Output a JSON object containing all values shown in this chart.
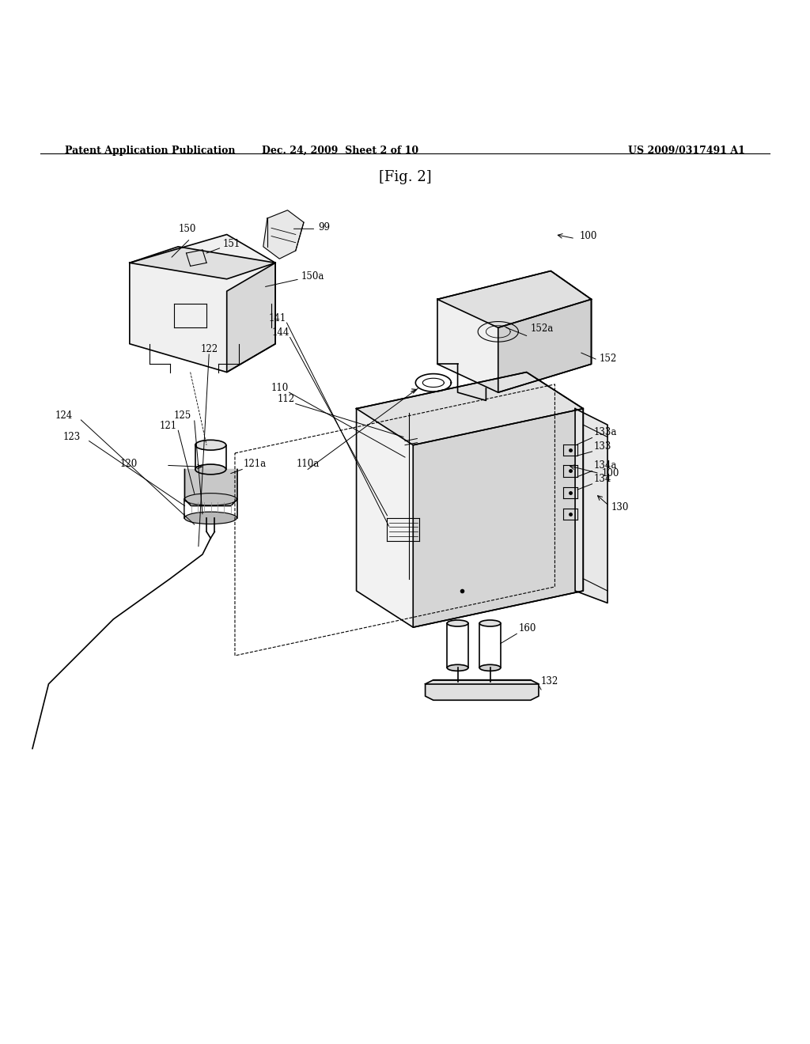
{
  "header_left": "Patent Application Publication",
  "header_mid": "Dec. 24, 2009  Sheet 2 of 10",
  "header_right": "US 2009/0317491 A1",
  "fig_label": "[Fig. 2]",
  "bg_color": "#ffffff",
  "line_color": "#000000"
}
